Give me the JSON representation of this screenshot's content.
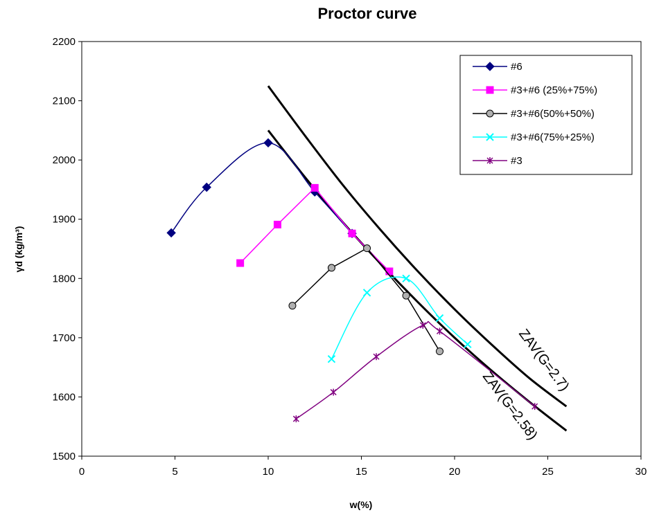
{
  "chart_data": {
    "type": "line",
    "title": "Proctor curve",
    "xlabel": "w(%)",
    "ylabel": "γd (kg/m³)",
    "xlim": [
      0,
      30
    ],
    "ylim": [
      1500,
      2200
    ],
    "x_ticks": [
      0,
      5,
      10,
      15,
      20,
      25,
      30
    ],
    "y_ticks": [
      1500,
      1600,
      1700,
      1800,
      1900,
      2000,
      2100,
      2200
    ],
    "grid": false,
    "legend_position": "top-right",
    "series": [
      {
        "name": "#6",
        "color": "#000080",
        "marker": "diamond",
        "x": [
          4.8,
          6.7,
          10.0,
          12.5,
          14.5
        ],
        "y": [
          1877,
          1954,
          2029,
          1946,
          1876
        ],
        "smooth": true
      },
      {
        "name": "#3+#6 (25%+75%)",
        "color": "#ff00ff",
        "marker": "square",
        "x": [
          8.5,
          10.5,
          12.5,
          14.5,
          16.5
        ],
        "y": [
          1826,
          1891,
          1953,
          1876,
          1812
        ],
        "smooth": false
      },
      {
        "name": "#3+#6(50%+50%)",
        "color": "#000000",
        "marker": "circle",
        "x": [
          11.3,
          13.4,
          15.3,
          17.4,
          19.2
        ],
        "y": [
          1754,
          1818,
          1851,
          1771,
          1677
        ],
        "smooth": false
      },
      {
        "name": "#3+#6(75%+25%)",
        "color": "#00ffff",
        "marker": "x",
        "x": [
          13.4,
          15.3,
          17.4,
          19.2,
          20.7
        ],
        "y": [
          1664,
          1776,
          1800,
          1733,
          1689
        ],
        "smooth": true
      },
      {
        "name": "#3",
        "color": "#800080",
        "marker": "star",
        "x": [
          11.5,
          13.5,
          15.8,
          18.3,
          19.2,
          24.3
        ],
        "y": [
          1563,
          1608,
          1668,
          1721,
          1711,
          1584
        ],
        "smooth": true
      }
    ],
    "zav_curves": [
      {
        "label": "ZAV(G=2.7)",
        "G": 2.7,
        "x": [
          10,
          12,
          14,
          16,
          18,
          20,
          22,
          24,
          26
        ],
        "y": [
          2125,
          2040,
          1958,
          1883,
          1813,
          1748,
          1688,
          1632,
          1584
        ]
      },
      {
        "label": "ZAV(G=2.58)",
        "G": 2.58,
        "x": [
          10,
          12,
          14,
          16,
          18,
          20,
          22,
          24,
          26
        ],
        "y": [
          2050,
          1970,
          1895,
          1826,
          1761,
          1700,
          1644,
          1592,
          1543
        ]
      }
    ]
  }
}
